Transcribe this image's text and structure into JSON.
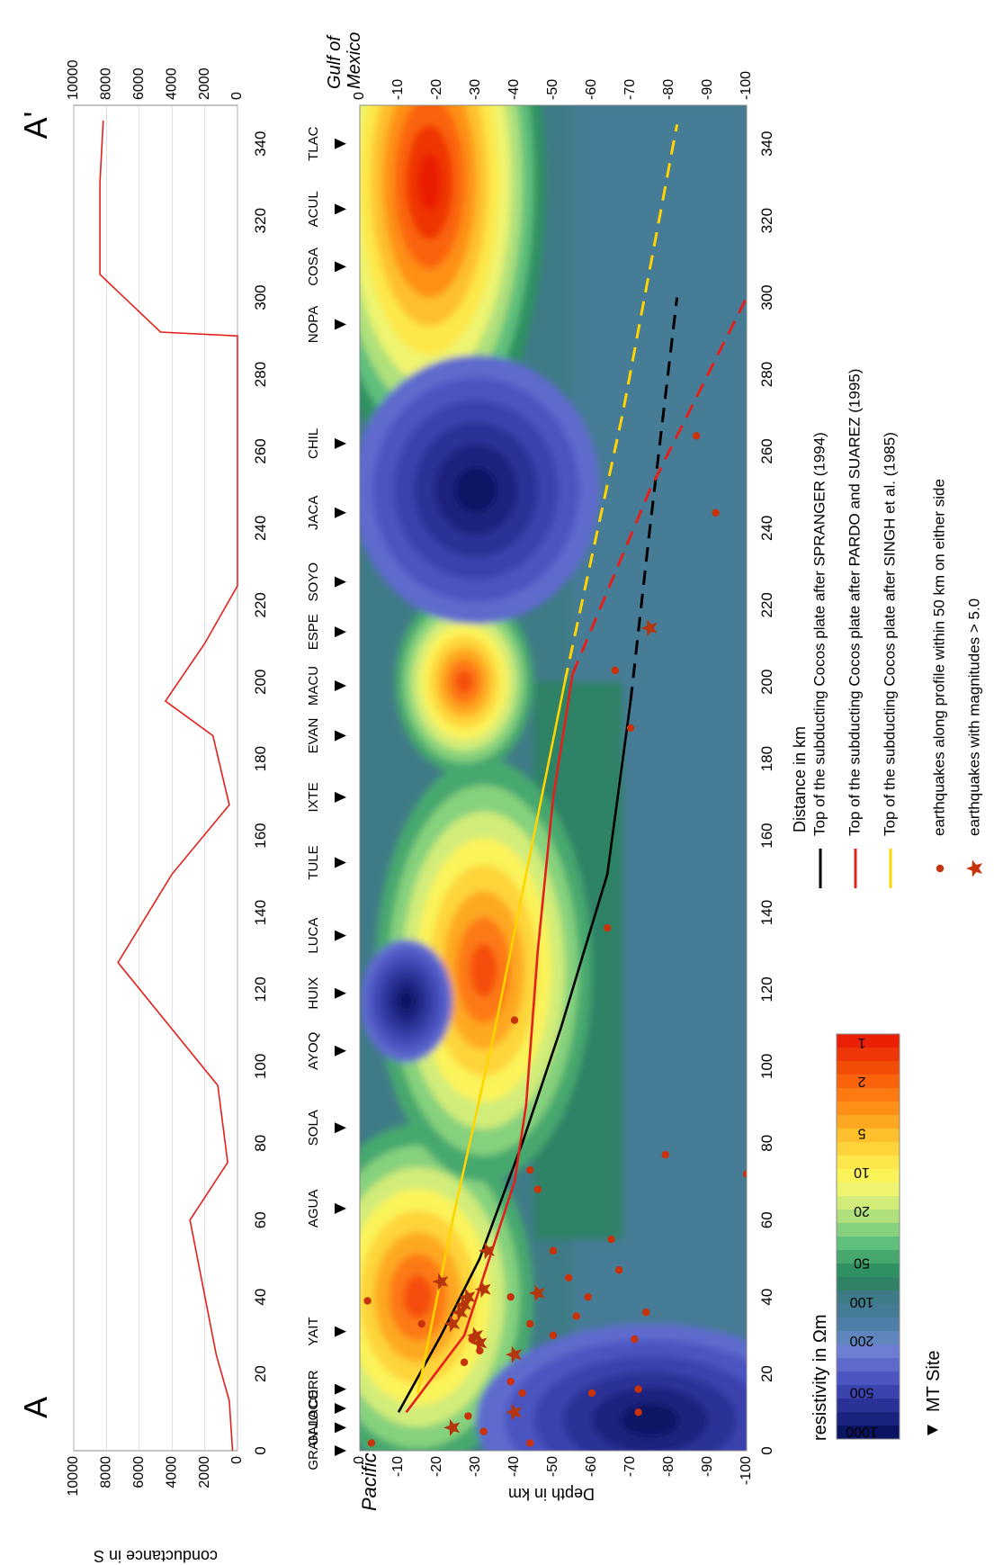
{
  "chart_data": [
    {
      "type": "line",
      "ylabel": "conductance in S",
      "yticks": [
        0,
        2000,
        4000,
        6000,
        8000,
        10000
      ],
      "ylim": [
        0,
        10000
      ],
      "xlim": [
        0,
        350
      ],
      "series": [
        {
          "x": [
            0,
            13,
            25,
            60,
            75,
            95,
            127,
            150,
            168,
            186,
            195,
            210,
            225,
            290,
            291,
            306,
            330,
            346
          ],
          "y": [
            300,
            500,
            1300,
            2900,
            600,
            1200,
            7300,
            4000,
            500,
            1500,
            4400,
            2000,
            0,
            0,
            4700,
            8400,
            8400,
            8200
          ]
        }
      ]
    },
    {
      "type": "heatmap",
      "xlabel": "Distance in km",
      "ylabel": "Depth in km",
      "xlim": [
        0,
        350
      ],
      "ylim": [
        -100,
        0
      ],
      "xticks": [
        0,
        20,
        40,
        60,
        80,
        100,
        120,
        140,
        160,
        180,
        200,
        220,
        240,
        260,
        280,
        300,
        320,
        340
      ],
      "yticks": [
        0,
        -10,
        -20,
        -30,
        -40,
        -50,
        -60,
        -70,
        -80,
        -90,
        -100
      ],
      "end_labels": {
        "left": "A",
        "right": "A'"
      },
      "region_labels": {
        "left": "Pacific",
        "right_1": "Gulf of",
        "right_2": "Mexico"
      },
      "mt_sites": [
        {
          "name": "GRAN",
          "x": 0
        },
        {
          "name": "GALA",
          "x": 6
        },
        {
          "name": "JOCO",
          "x": 11
        },
        {
          "name": "CERR",
          "x": 16
        },
        {
          "name": "YAIT",
          "x": 31
        },
        {
          "name": "AGUA",
          "x": 63
        },
        {
          "name": "SOLA",
          "x": 84
        },
        {
          "name": "AYOQ",
          "x": 104
        },
        {
          "name": "HUIX",
          "x": 119
        },
        {
          "name": "LUCA",
          "x": 134
        },
        {
          "name": "TULE",
          "x": 153
        },
        {
          "name": "IXTE",
          "x": 170
        },
        {
          "name": "EVAN",
          "x": 186
        },
        {
          "name": "MACU",
          "x": 199
        },
        {
          "name": "ESPE",
          "x": 213
        },
        {
          "name": "SOYO",
          "x": 226
        },
        {
          "name": "JACA",
          "x": 244
        },
        {
          "name": "CHIL",
          "x": 262
        },
        {
          "name": "NOPA",
          "x": 293
        },
        {
          "name": "COSA",
          "x": 308
        },
        {
          "name": "ACUL",
          "x": 323
        },
        {
          "name": "TLAC",
          "x": 340
        }
      ],
      "colorbar": {
        "title": "resistivity in Ωm",
        "ticks": [
          1000,
          500,
          200,
          100,
          50,
          20,
          10,
          5,
          2,
          1
        ],
        "colors": [
          "#0a1463",
          "#1a237d",
          "#2a3297",
          "#3a43ae",
          "#4c55c2",
          "#5f6acd",
          "#6e7ed2",
          "#5f85be",
          "#4f7ea9",
          "#467b96",
          "#3f7b87",
          "#2f8266",
          "#2f9162",
          "#47a86e",
          "#5ec07b",
          "#86d17d",
          "#afe07b",
          "#d2ec79",
          "#eef470",
          "#fbf35a",
          "#fde74a",
          "#fed43a",
          "#fec02d",
          "#fea821",
          "#fe9018",
          "#fd7912",
          "#fa630c",
          "#f44d08",
          "#ef3606",
          "#ea1f03"
        ]
      },
      "regions": [
        {
          "label": "conductor",
          "center": [
            40,
            -15
          ],
          "ln_rho": 1.0
        },
        {
          "label": "conductor",
          "center": [
            125,
            -32
          ],
          "ln_rho": 1.0
        },
        {
          "label": "conductor",
          "center": [
            200,
            -27
          ],
          "ln_rho": 1.0
        },
        {
          "label": "conductor",
          "center": [
            335,
            -15
          ],
          "ln_rho": 0.0
        },
        {
          "label": "resistor",
          "center": [
            117,
            -12
          ],
          "ln_rho": 3.0
        },
        {
          "label": "resistor",
          "center": [
            245,
            -35
          ],
          "ln_rho": 3.0
        },
        {
          "label": "resistor",
          "center": [
            8,
            -70
          ],
          "ln_rho": 3.0
        }
      ],
      "lines": [
        {
          "name": "Top of the subducting Cocos plate after SPRANGER (1994)",
          "color": "#000000",
          "x": [
            10,
            30,
            50,
            80,
            110,
            150,
            195
          ],
          "y": [
            -10,
            -21,
            -31,
            -42,
            -52,
            -64,
            -70
          ],
          "dashed_x": [
            195,
            240,
            300
          ],
          "dashed_y": [
            -70,
            -75,
            -82
          ]
        },
        {
          "name": "Top of the subducting Cocos plate after PARDO and SUAREZ (1995)",
          "color": "#e3201b",
          "x": [
            10,
            30,
            70,
            90,
            130,
            170,
            202
          ],
          "y": [
            -12,
            -27,
            -40,
            -43,
            -46,
            -50,
            -55
          ],
          "dashed_x": [
            202,
            250,
            300
          ],
          "dashed_y": [
            -55,
            -75,
            -100
          ]
        },
        {
          "name": "Top of the subducting Cocos plate after SINGH et al. (1985)",
          "color": "#ffd400",
          "x": [
            15,
            60,
            110,
            150,
            200
          ],
          "y": [
            -15,
            -24,
            -35,
            -43,
            -53
          ],
          "dashed_x": [
            200,
            270,
            345
          ],
          "dashed_y": [
            -53,
            -68,
            -82
          ]
        }
      ],
      "earthquakes": [
        {
          "x": 2,
          "y": -3
        },
        {
          "x": 2,
          "y": -44
        },
        {
          "x": 5,
          "y": -32
        },
        {
          "x": 9,
          "y": -28
        },
        {
          "x": 10,
          "y": -72
        },
        {
          "x": 15,
          "y": -42
        },
        {
          "x": 15,
          "y": -60
        },
        {
          "x": 16,
          "y": -72
        },
        {
          "x": 18,
          "y": -39
        },
        {
          "x": 23,
          "y": -27
        },
        {
          "x": 26,
          "y": -31
        },
        {
          "x": 29,
          "y": -29
        },
        {
          "x": 29,
          "y": -71
        },
        {
          "x": 30,
          "y": -50
        },
        {
          "x": 33,
          "y": -44
        },
        {
          "x": 33,
          "y": -16
        },
        {
          "x": 35,
          "y": -56
        },
        {
          "x": 36,
          "y": -74
        },
        {
          "x": 39,
          "y": -2
        },
        {
          "x": 40,
          "y": -39
        },
        {
          "x": 40,
          "y": -59
        },
        {
          "x": 45,
          "y": -54
        },
        {
          "x": 47,
          "y": -67
        },
        {
          "x": 52,
          "y": -50
        },
        {
          "x": 55,
          "y": -65
        },
        {
          "x": 68,
          "y": -46
        },
        {
          "x": 72,
          "y": -100
        },
        {
          "x": 73,
          "y": -44
        },
        {
          "x": 77,
          "y": -79
        },
        {
          "x": 112,
          "y": -40
        },
        {
          "x": 136,
          "y": -64
        },
        {
          "x": 188,
          "y": -70
        },
        {
          "x": 203,
          "y": -66
        },
        {
          "x": 244,
          "y": -92
        },
        {
          "x": 264,
          "y": -87
        }
      ],
      "large_earthquakes": [
        {
          "x": 6,
          "y": -24
        },
        {
          "x": 10,
          "y": -40
        },
        {
          "x": 25,
          "y": -40
        },
        {
          "x": 28,
          "y": -31
        },
        {
          "x": 30,
          "y": -30
        },
        {
          "x": 33,
          "y": -24
        },
        {
          "x": 36,
          "y": -26
        },
        {
          "x": 38,
          "y": -27
        },
        {
          "x": 40,
          "y": -28
        },
        {
          "x": 41,
          "y": -46
        },
        {
          "x": 42,
          "y": -32
        },
        {
          "x": 44,
          "y": -21
        },
        {
          "x": 52,
          "y": -33
        },
        {
          "x": 214,
          "y": -75
        }
      ],
      "legend": [
        {
          "symbol": "line",
          "color": "#000000",
          "label": "Top of the subducting Cocos plate after SPRANGER (1994)"
        },
        {
          "symbol": "line",
          "color": "#e3201b",
          "label": "Top of the subducting Cocos plate after PARDO and SUAREZ (1995)"
        },
        {
          "symbol": "line",
          "color": "#ffd400",
          "label": "Top of the subducting Cocos plate after SINGH et al. (1985)"
        },
        {
          "symbol": "dot",
          "color": "#c8320a",
          "label": "earthquakes along profile within 50 km on either side"
        },
        {
          "symbol": "star",
          "color": "#c8320a",
          "label": "earthquakes with magnitudes > 5.0"
        }
      ],
      "mt_site_legend": "MT Site"
    }
  ]
}
